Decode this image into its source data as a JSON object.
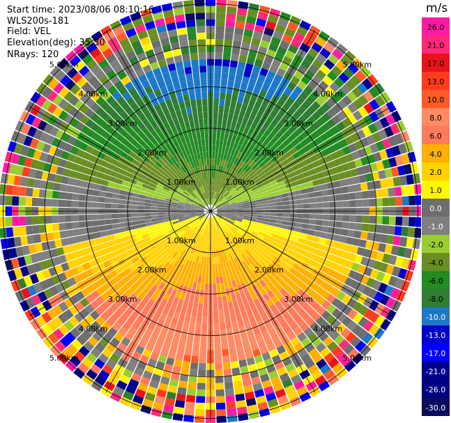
{
  "info": {
    "start_time": "Start time: 2023/08/06 08:10:16",
    "station": "WLS200s-181",
    "field": "Field: VEL",
    "elevation": "Elevation(deg): 35.30",
    "nrays": "NRays: 120"
  },
  "chart_data": {
    "type": "ppi",
    "field": "VEL",
    "elevation_deg": 35.3,
    "n_rays": 120,
    "range_rings_km": [
      1.0,
      2.0,
      3.0,
      4.0,
      5.0
    ],
    "range_ring_labels": [
      "1.00km",
      "2.00km",
      "3.00km",
      "4.00km",
      "5.00km"
    ],
    "colorbar": {
      "unit": "m/s",
      "tick_labels": [
        "26.0",
        "21.0",
        "17.0",
        "13.0",
        "10.0",
        "8.0",
        "6.0",
        "4.0",
        "2.0",
        "1.0",
        "0.0",
        "-1.0",
        "-2.0",
        "-4.0",
        "-6.0",
        "-8.0",
        "-10.0",
        "-13.0",
        "-17.0",
        "-21.0",
        "-26.0",
        "-30.0"
      ],
      "colors": [
        "#ff1aa6",
        "#ff2a7a",
        "#e8121a",
        "#ff3b1e",
        "#ff5a28",
        "#ff8a63",
        "#ff7b5c",
        "#ffb000",
        "#ffd200",
        "#fff700",
        "#6e6e6e",
        "#7f7f7f",
        "#9acd32",
        "#6b8e23",
        "#228b22",
        "#2e7d32",
        "#1e78c8",
        "#0000cd",
        "#0000ff",
        "#00008b",
        "#000080",
        "#0b0b5e"
      ]
    }
  }
}
